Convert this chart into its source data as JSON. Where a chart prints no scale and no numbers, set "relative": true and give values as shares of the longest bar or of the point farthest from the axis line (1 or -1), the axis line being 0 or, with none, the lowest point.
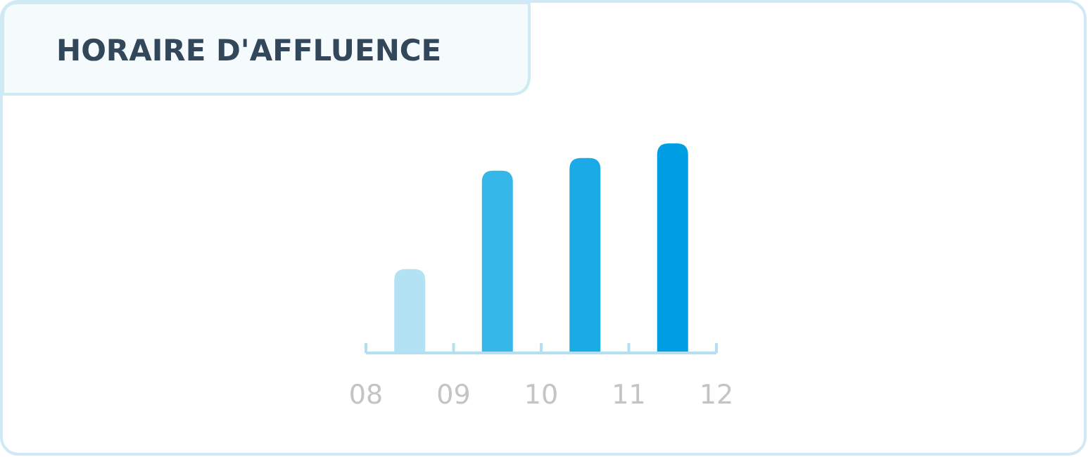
{
  "chart_data": {
    "type": "bar",
    "title": "HORAIRE D'AFFLUENCE",
    "relative": true,
    "x": [
      8.5,
      9.5,
      10.5,
      11.5
    ],
    "values": [
      0.4,
      0.87,
      0.93,
      1
    ],
    "colors": [
      "#b3e2f5",
      "#36b7ea",
      "#1aabe6",
      "#009fe3"
    ],
    "xlim": [
      8,
      12
    ],
    "xticks": [
      {
        "value": 8,
        "label": "08"
      },
      {
        "value": 9,
        "label": "09"
      },
      {
        "value": 10,
        "label": "10"
      },
      {
        "value": 11,
        "label": "11"
      },
      {
        "value": 12,
        "label": "12"
      }
    ]
  }
}
